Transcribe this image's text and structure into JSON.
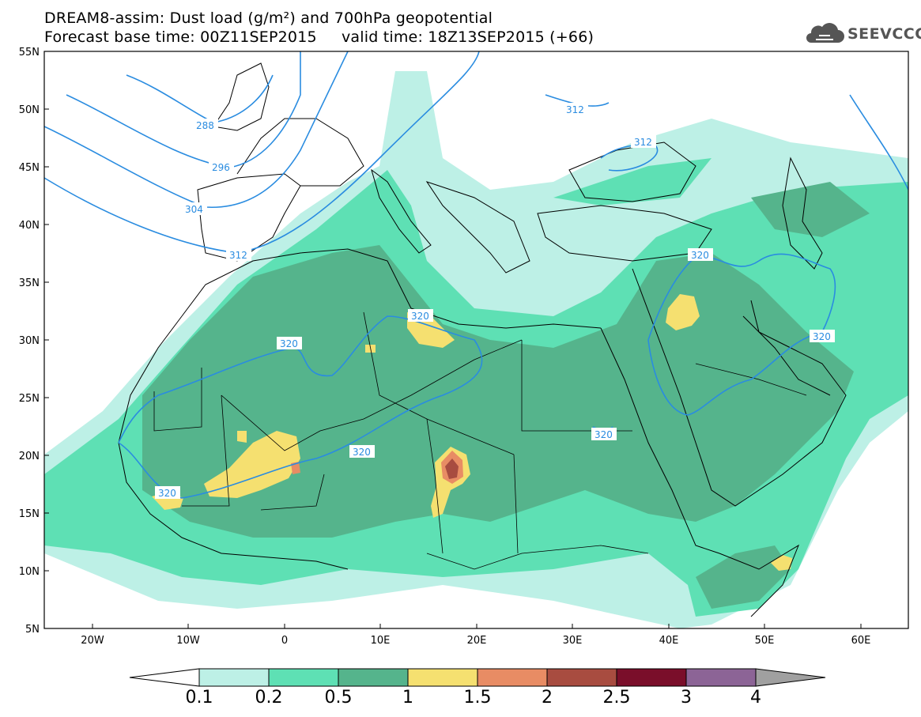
{
  "header": {
    "title_line1": "DREAM8-assim: Dust load (g/m²) and 700hPa geopotential",
    "title_line2": "Forecast base time: 00Z11SEP2015     valid time: 18Z13SEP2015 (+66)"
  },
  "logo": {
    "text": "SEEVCCC",
    "icon": "cloud-icon"
  },
  "map": {
    "lon_range": [
      -25,
      65
    ],
    "lat_range": [
      5,
      55
    ],
    "lat_ticks": [
      "55N",
      "50N",
      "45N",
      "40N",
      "35N",
      "30N",
      "25N",
      "20N",
      "15N",
      "10N",
      "5N"
    ],
    "lon_ticks": [
      "20W",
      "10W",
      "0",
      "10E",
      "20E",
      "30E",
      "40E",
      "50E",
      "60E"
    ],
    "contour_labels": [
      "288",
      "296",
      "304",
      "312",
      "312",
      "312",
      "320",
      "320",
      "320",
      "320",
      "320",
      "320",
      "320"
    ]
  },
  "colorbar": {
    "labels": [
      "0.1",
      "0.2",
      "0.5",
      "1",
      "1.5",
      "2",
      "2.5",
      "3",
      "4"
    ],
    "colors": [
      "#ffffff",
      "#bdf0e6",
      "#5ee0b4",
      "#55b48c",
      "#f5e070",
      "#e88c64",
      "#a84c40",
      "#7a0e2a",
      "#8c6496",
      "#a0a0a0"
    ]
  }
}
